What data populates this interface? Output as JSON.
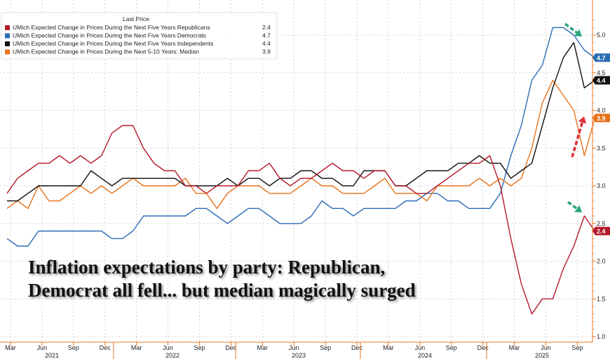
{
  "chart_data": {
    "type": "line",
    "legend": {
      "title": "Last Price",
      "placement": "top-left"
    },
    "x_tick_labels": [
      "Mar",
      "Jun",
      "Sep",
      "Dec",
      "Mar",
      "Jun",
      "Sep",
      "Dec",
      "Mar",
      "Jun",
      "Sep",
      "Dec",
      "Mar",
      "Jun",
      "Sep",
      "Dec",
      "Mar",
      "Jun",
      "Sep"
    ],
    "year_labels": [
      "2021",
      "2022",
      "2023",
      "2024",
      "2025"
    ],
    "y_tick_labels": [
      "1.0",
      "1.5",
      "2.0",
      "2.5",
      "3.0",
      "3.5",
      "4.0",
      "4.5",
      "5.0"
    ],
    "ylim": [
      1.0,
      5.2
    ],
    "grid": true,
    "y_axis_side": "right",
    "series": [
      {
        "name": "UMich Expected Change in Prices During the Next Five Years Republicans",
        "last": "2.4",
        "color": "#b5182a",
        "values": [
          2.9,
          3.1,
          3.2,
          3.3,
          3.3,
          3.4,
          3.3,
          3.4,
          3.3,
          3.4,
          3.7,
          3.8,
          3.8,
          3.5,
          3.3,
          3.2,
          3.2,
          3.0,
          3.0,
          2.9,
          3.0,
          3.0,
          3.0,
          3.2,
          3.2,
          3.3,
          3.1,
          3.0,
          3.1,
          3.1,
          3.2,
          3.3,
          3.2,
          3.2,
          3.1,
          3.2,
          3.2,
          3.0,
          3.0,
          2.9,
          2.9,
          3.0,
          3.1,
          3.2,
          3.3,
          3.3,
          3.4,
          3.0,
          2.3,
          1.7,
          1.3,
          1.5,
          1.5,
          1.9,
          2.2,
          2.6,
          2.4
        ]
      },
      {
        "name": "UMich Expected Change in Prices During the Next Five Years Democrats",
        "last": "4.7",
        "color": "#2a6db5",
        "values": [
          2.3,
          2.2,
          2.2,
          2.4,
          2.4,
          2.4,
          2.4,
          2.4,
          2.4,
          2.4,
          2.3,
          2.3,
          2.4,
          2.6,
          2.6,
          2.6,
          2.6,
          2.6,
          2.7,
          2.7,
          2.6,
          2.5,
          2.6,
          2.7,
          2.7,
          2.6,
          2.5,
          2.5,
          2.5,
          2.6,
          2.8,
          2.7,
          2.7,
          2.6,
          2.7,
          2.7,
          2.7,
          2.7,
          2.8,
          2.8,
          2.9,
          2.9,
          2.8,
          2.8,
          2.7,
          2.7,
          2.7,
          2.9,
          3.4,
          3.8,
          4.4,
          4.6,
          5.1,
          5.1,
          5.0,
          4.8,
          4.7
        ]
      },
      {
        "name": "UMich Expected Change in Prices During the Next Five Years Independents",
        "last": "4.4",
        "color": "#111111",
        "values": [
          2.8,
          2.8,
          2.9,
          3.0,
          3.0,
          3.0,
          3.0,
          3.0,
          3.2,
          3.1,
          3.0,
          3.1,
          3.1,
          3.1,
          3.1,
          3.1,
          3.1,
          3.0,
          3.0,
          3.0,
          3.0,
          3.1,
          3.0,
          3.1,
          3.1,
          3.0,
          3.1,
          3.1,
          3.2,
          3.2,
          3.1,
          3.1,
          3.0,
          3.0,
          3.2,
          3.2,
          3.2,
          3.0,
          3.0,
          3.1,
          3.2,
          3.2,
          3.2,
          3.3,
          3.3,
          3.4,
          3.3,
          3.3,
          3.1,
          3.2,
          3.3,
          3.8,
          4.3,
          4.7,
          4.9,
          4.3,
          4.4
        ]
      },
      {
        "name": "UMich Expected Change in Prices During the Next 5-10 Years: Median",
        "last": "3.9",
        "color": "#e8731c",
        "values": [
          2.7,
          2.8,
          2.7,
          3.0,
          2.8,
          2.8,
          2.9,
          3.0,
          2.9,
          3.0,
          2.9,
          3.0,
          3.1,
          3.0,
          3.0,
          3.0,
          3.0,
          3.1,
          2.9,
          2.9,
          2.7,
          2.9,
          3.0,
          3.0,
          3.0,
          2.9,
          2.9,
          2.9,
          3.0,
          3.1,
          3.0,
          3.0,
          2.9,
          2.9,
          2.9,
          3.0,
          3.1,
          2.9,
          2.9,
          2.9,
          2.8,
          3.0,
          3.0,
          3.0,
          3.0,
          3.1,
          3.0,
          3.1,
          3.0,
          3.1,
          3.5,
          4.1,
          4.4,
          4.2,
          4.0,
          3.4,
          3.9
        ]
      }
    ]
  },
  "annotation": {
    "line1": "Inflation expectations by party: Republican,",
    "line2": "Democrat all fell... but median magically surged"
  }
}
